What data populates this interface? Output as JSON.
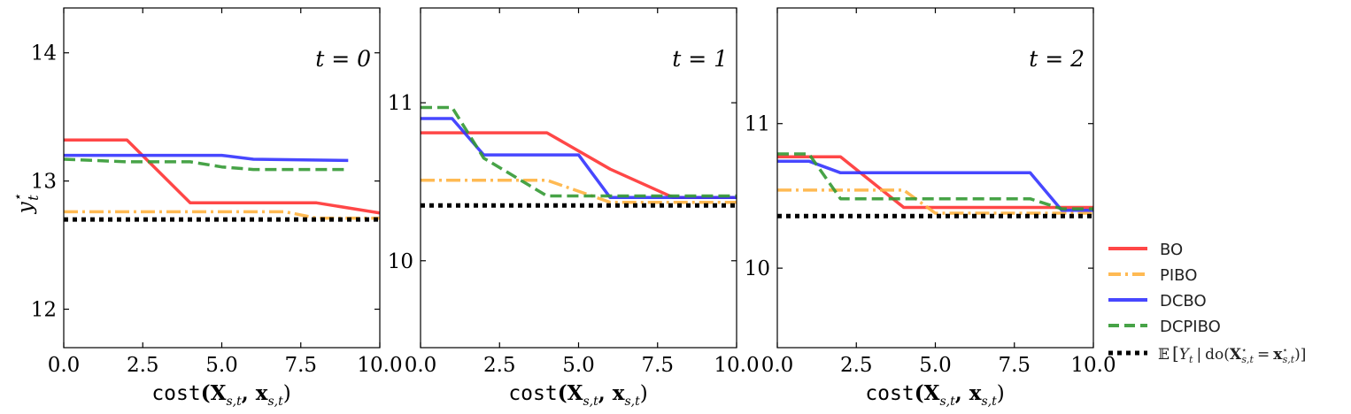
{
  "chart_data": [
    {
      "type": "line",
      "panel_label": "t = 0",
      "xlabel_func": "cost",
      "xlabel_args": "(X",
      "xlabel_sub1": "s,t",
      "xlabel_mid": ", x",
      "xlabel_sub2": "s,t",
      "xlabel_close": ")",
      "ylabel_base": "y",
      "ylabel_sup": "⋆",
      "ylabel_sub": "t",
      "xlim": [
        0,
        10
      ],
      "ylim": [
        11.7,
        14.35
      ],
      "x_ticks": [
        "0.0",
        "2.5",
        "5.0",
        "7.5",
        "10.0"
      ],
      "y_ticks": [
        "12",
        "13",
        "14"
      ],
      "series": [
        {
          "name": "BO",
          "x": [
            0,
            2,
            4,
            8,
            10
          ],
          "y": [
            13.32,
            13.32,
            12.83,
            12.83,
            12.75
          ]
        },
        {
          "name": "PIBO",
          "x": [
            0,
            7,
            8,
            10
          ],
          "y": [
            12.76,
            12.76,
            12.71,
            12.71
          ]
        },
        {
          "name": "DCBO",
          "x": [
            0,
            5,
            6,
            9
          ],
          "y": [
            13.2,
            13.2,
            13.17,
            13.16
          ]
        },
        {
          "name": "DCPIBO",
          "x": [
            0,
            2,
            4,
            5,
            6,
            9
          ],
          "y": [
            13.17,
            13.15,
            13.15,
            13.11,
            13.09,
            13.09
          ]
        },
        {
          "name": "E[Y_t | do(X*_{s,t} = x*_{s,t})]",
          "x": [
            0,
            10
          ],
          "y": [
            12.7,
            12.7
          ]
        }
      ]
    },
    {
      "type": "line",
      "panel_label": "t = 1",
      "xlabel_func": "cost",
      "xlabel_args": "(X",
      "xlabel_sub1": "s,t",
      "xlabel_mid": ", x",
      "xlabel_sub2": "s,t",
      "xlabel_close": ")",
      "xlim": [
        0,
        10
      ],
      "ylim": [
        9.45,
        11.6
      ],
      "x_ticks": [
        "0.0",
        "2.5",
        "5.0",
        "7.5",
        "10.0"
      ],
      "y_ticks": [
        "10",
        "11"
      ],
      "series": [
        {
          "name": "BO",
          "x": [
            0,
            4,
            6,
            8,
            10
          ],
          "y": [
            10.81,
            10.81,
            10.58,
            10.4,
            10.4
          ]
        },
        {
          "name": "PIBO",
          "x": [
            0,
            4,
            6,
            10
          ],
          "y": [
            10.51,
            10.51,
            10.37,
            10.37
          ]
        },
        {
          "name": "DCBO",
          "x": [
            0,
            1,
            2,
            5,
            6,
            10
          ],
          "y": [
            10.9,
            10.9,
            10.67,
            10.67,
            10.4,
            10.4
          ]
        },
        {
          "name": "DCPIBO",
          "x": [
            0,
            1,
            2,
            4,
            10
          ],
          "y": [
            10.97,
            10.97,
            10.65,
            10.41,
            10.41
          ]
        },
        {
          "name": "E[Y_t | do(X*_{s,t} = x*_{s,t})]",
          "x": [
            0,
            10
          ],
          "y": [
            10.35,
            10.35
          ]
        }
      ]
    },
    {
      "type": "line",
      "panel_label": "t = 2",
      "xlabel_func": "cost",
      "xlabel_args": "(X",
      "xlabel_sub1": "s,t",
      "xlabel_mid": ", x",
      "xlabel_sub2": "s,t",
      "xlabel_close": ")",
      "xlim": [
        0,
        10
      ],
      "ylim": [
        9.45,
        11.8
      ],
      "x_ticks": [
        "0.0",
        "2.5",
        "5.0",
        "7.5",
        "10.0"
      ],
      "y_ticks": [
        "10",
        "11"
      ],
      "series": [
        {
          "name": "BO",
          "x": [
            0,
            2,
            4,
            10
          ],
          "y": [
            10.77,
            10.77,
            10.42,
            10.42
          ]
        },
        {
          "name": "PIBO",
          "x": [
            0,
            4,
            5,
            10
          ],
          "y": [
            10.54,
            10.54,
            10.38,
            10.38
          ]
        },
        {
          "name": "DCBO",
          "x": [
            0,
            1,
            2,
            8,
            9,
            10
          ],
          "y": [
            10.74,
            10.74,
            10.66,
            10.66,
            10.4,
            10.4
          ]
        },
        {
          "name": "DCPIBO",
          "x": [
            0,
            1,
            2,
            8,
            9,
            10
          ],
          "y": [
            10.79,
            10.79,
            10.48,
            10.48,
            10.41,
            10.41
          ]
        },
        {
          "name": "E[Y_t | do(X*_{s,t} = x*_{s,t})]",
          "x": [
            0,
            10
          ],
          "y": [
            10.36,
            10.36
          ]
        }
      ]
    }
  ],
  "legend": {
    "placement": "right",
    "items": [
      {
        "label": "BO",
        "color": "#ff3333",
        "dash": "solid"
      },
      {
        "label": "PIBO",
        "color": "#ffb340",
        "dash": "dashdot"
      },
      {
        "label": "DCBO",
        "color": "#3333ff",
        "dash": "solid"
      },
      {
        "label": "DCPIBO",
        "color": "#339933",
        "dash": "dashed"
      }
    ],
    "expectation": {
      "color": "#000000",
      "dash": "dotted",
      "E": "𝔼",
      "open": "[",
      "Y": "Y",
      "Y_sub": "t",
      "bar": "|",
      "do": "do(",
      "X": "X",
      "X_sup": "⋆",
      "X_sub": "s,t",
      "eq": "=",
      "x": "x",
      "x_sup": "⋆",
      "x_sub": "s,t",
      "close": ")]"
    }
  },
  "colors": {
    "BO": "#ff3333",
    "PIBO": "#ffb340",
    "DCBO": "#3333ff",
    "DCPIBO": "#339933",
    "expectation": "#000000"
  }
}
